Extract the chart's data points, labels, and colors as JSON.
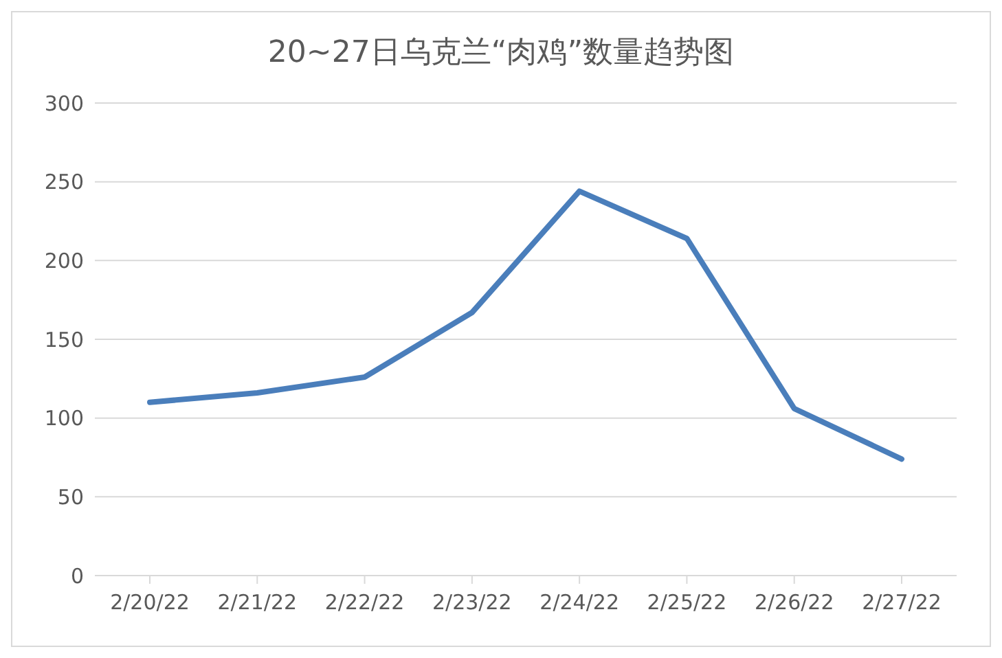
{
  "chart_data": {
    "type": "line",
    "title": "20~27日乌克兰“肉鸡”数量趋势图",
    "categories": [
      "2/20/22",
      "2/21/22",
      "2/22/22",
      "2/23/22",
      "2/24/22",
      "2/25/22",
      "2/26/22",
      "2/27/22"
    ],
    "series": [
      {
        "color": "#4a7ebb",
        "values": [
          110,
          116,
          126,
          167,
          244,
          214,
          106,
          74
        ]
      }
    ],
    "ylim": [
      0,
      300
    ],
    "yticks": [
      0,
      50,
      100,
      150,
      200,
      250,
      300
    ],
    "grid": "y",
    "legend": false,
    "marker": "none",
    "line_style": "solid"
  }
}
